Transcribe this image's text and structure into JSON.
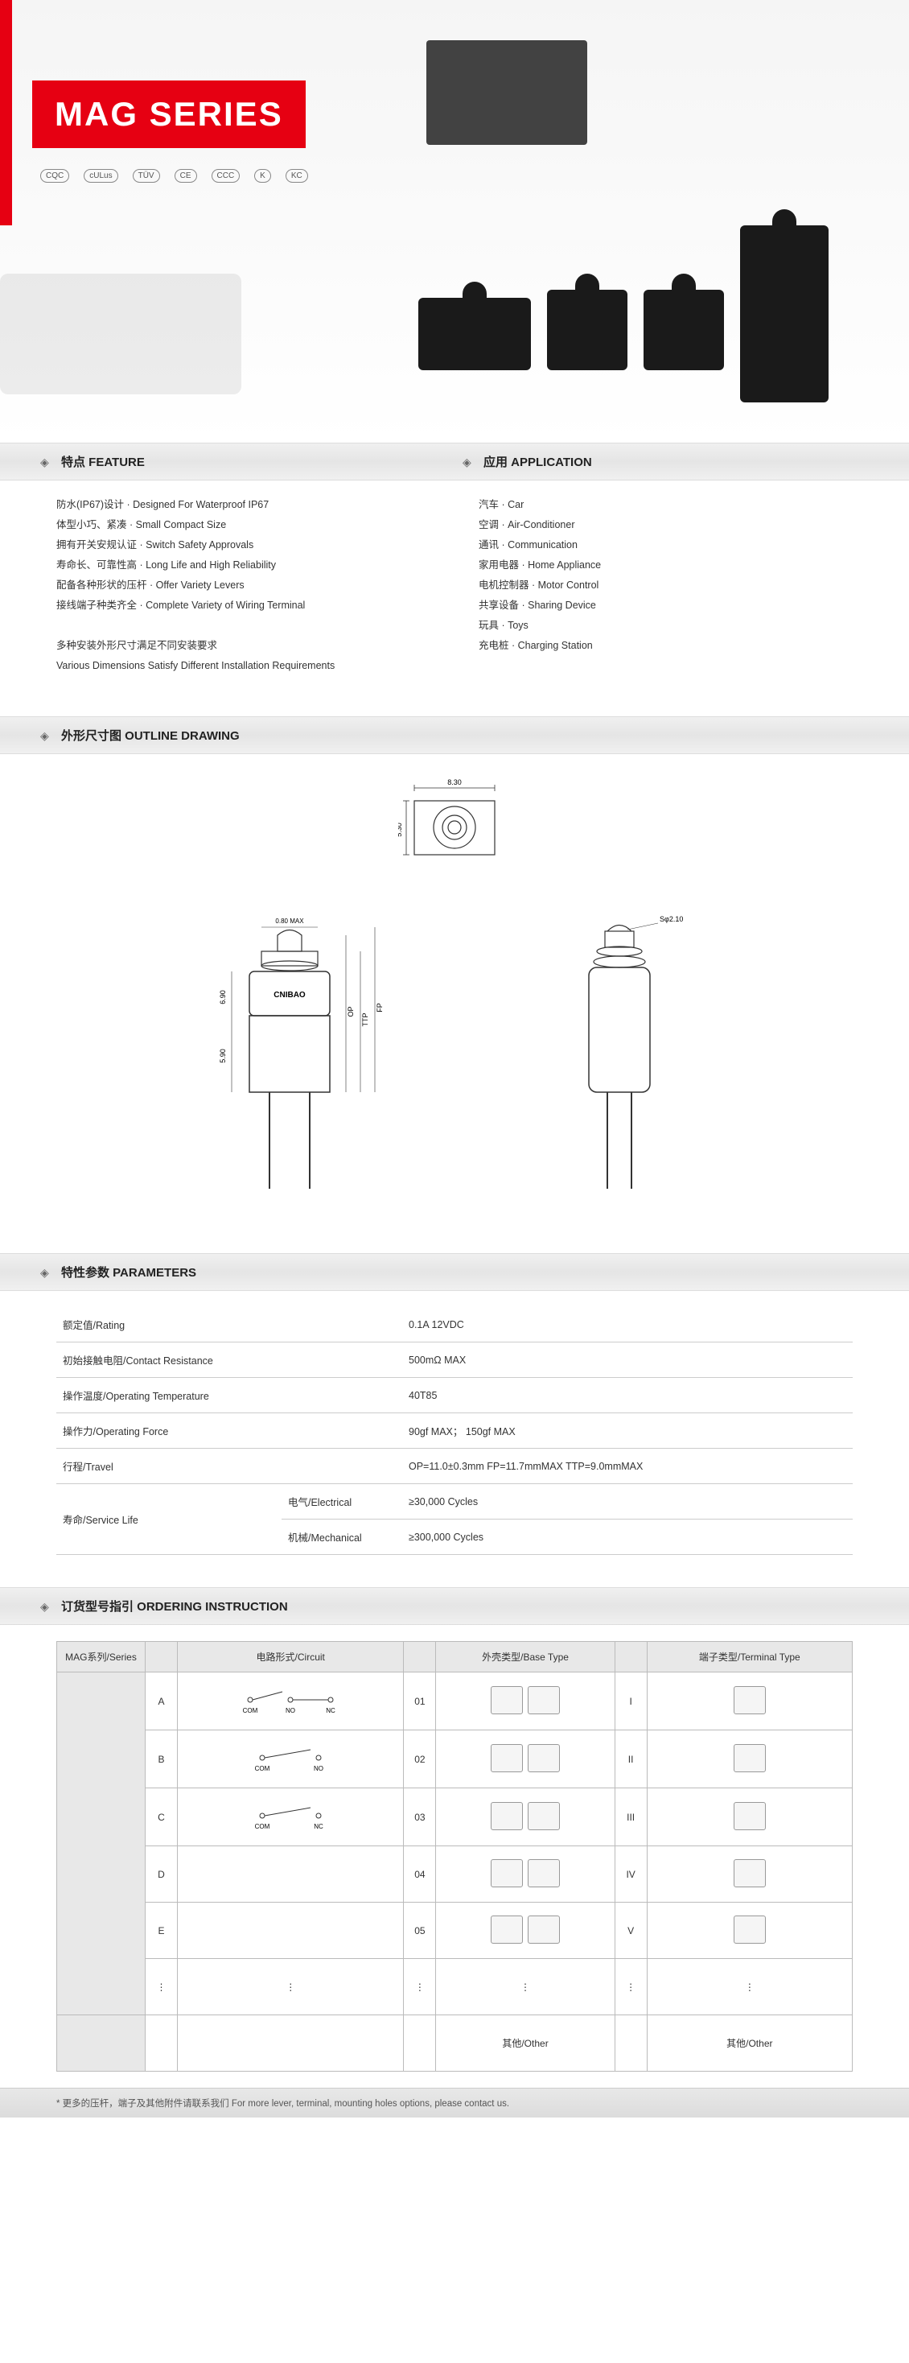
{
  "hero": {
    "title": "MAG SERIES",
    "certs": [
      "CQC",
      "cULus",
      "TÜV",
      "CE",
      "CCC",
      "K",
      "KC"
    ],
    "accent_color": "#e60012"
  },
  "feature": {
    "heading": "特点 FEATURE",
    "lines": [
      "防水(IP67)设计 · Designed For Waterproof IP67",
      "体型小巧、紧凑 · Small Compact Size",
      "拥有开关安规认证 · Switch Safety Approvals",
      "寿命长、可靠性高 · Long Life and High Reliability",
      "配备各种形状的压杆 · Offer Variety Levers",
      "接线端子种类齐全 · Complete Variety of Wiring Terminal",
      "",
      "多种安装外形尺寸满足不同安装要求",
      "Various Dimensions Satisfy Different Installation Requirements"
    ]
  },
  "application": {
    "heading": "应用 APPLICATION",
    "lines": [
      "汽车 · Car",
      "空调 · Air-Conditioner",
      "通讯 · Communication",
      "家用电器 · Home Appliance",
      "电机控制器 · Motor Control",
      "共享设备 · Sharing Device",
      "玩具 · Toys",
      "充电桩 · Charging Station"
    ]
  },
  "outline": {
    "heading": "外形尺寸图 OUTLINE DRAWING",
    "dims": {
      "top_w": "8.30",
      "top_h": "5.30",
      "front_w": "6.90",
      "front_h": "5.90",
      "gap": "0.80 MAX",
      "op_label": "OP",
      "fp_label": "FP",
      "ttp_label": "TTP",
      "sphere": "Sφ2.10"
    }
  },
  "parameters": {
    "heading": "特性参数 PARAMETERS",
    "rows": [
      {
        "label": "额定值/Rating",
        "value": "0.1A 12VDC"
      },
      {
        "label": "初始接触电阻/Contact Resistance",
        "value": "500mΩ MAX"
      },
      {
        "label": "操作温度/Operating Temperature",
        "value": "40T85"
      },
      {
        "label": "操作力/Operating Force",
        "value": "90gf MAX；  150gf MAX"
      },
      {
        "label": "行程/Travel",
        "value": "OP=11.0±0.3mm   FP=11.7mmMAX   TTP=9.0mmMAX"
      }
    ],
    "life": {
      "label": "寿命/Service Life",
      "electrical_label": "电气/Electrical",
      "electrical_value": "≥30,000 Cycles",
      "mechanical_label": "机械/Mechanical",
      "mechanical_value": "≥300,000 Cycles"
    }
  },
  "ordering": {
    "heading": "订货型号指引 ORDERING INSTRUCTION",
    "headers": {
      "series": "MAG系列/Series",
      "circuit": "电路形式/Circuit",
      "base": "外壳类型/Base Type",
      "terminal": "端子类型/Terminal Type"
    },
    "rows": [
      {
        "c": "A",
        "c_lbl": [
          "COM",
          "NO",
          "NC"
        ],
        "b": "01",
        "t": "I"
      },
      {
        "c": "B",
        "c_lbl": [
          "COM",
          "NO"
        ],
        "b": "02",
        "t": "II"
      },
      {
        "c": "C",
        "c_lbl": [
          "COM",
          "NC"
        ],
        "b": "03",
        "t": "III"
      },
      {
        "c": "D",
        "c_lbl": [],
        "b": "04",
        "t": "IV"
      },
      {
        "c": "E",
        "c_lbl": [],
        "b": "05",
        "t": "V"
      },
      {
        "c": "⋮",
        "c_lbl": [],
        "b": "⋮",
        "t": "⋮"
      }
    ],
    "other": "其他/Other",
    "footnote": "* 更多的压杆，端子及其他附件请联系我们   For more lever, terminal, mounting holes options, please contact us."
  }
}
